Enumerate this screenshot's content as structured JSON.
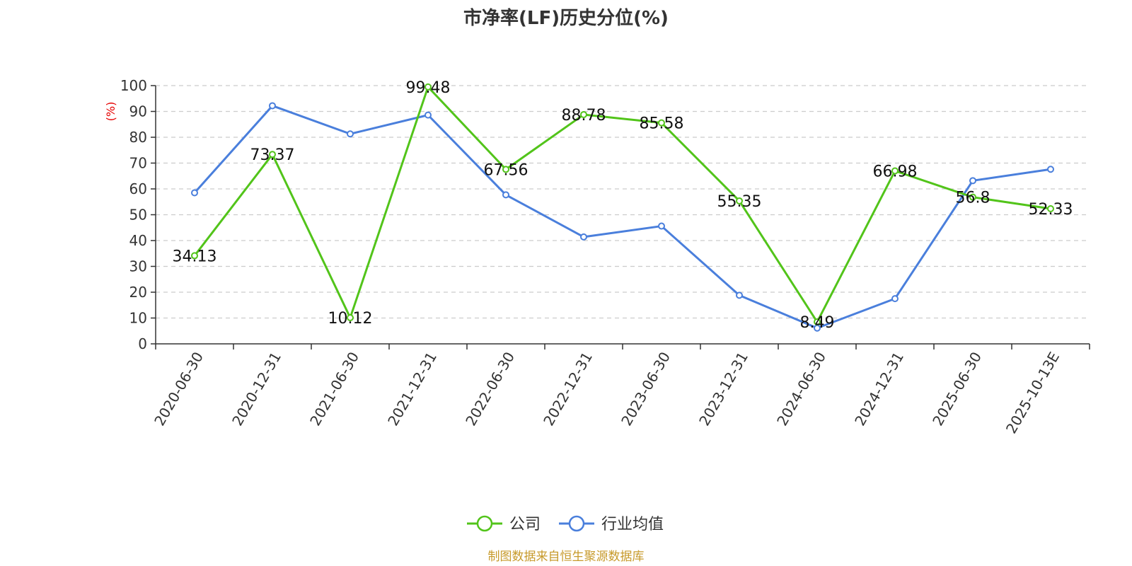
{
  "chart_data": {
    "type": "line",
    "title": "市净率(LF)历史分位(%)",
    "ylabel": "(%)",
    "ylim": [
      0,
      100
    ],
    "yticks": [
      0,
      10,
      20,
      30,
      40,
      50,
      60,
      70,
      80,
      90,
      100
    ],
    "categories": [
      "2020-06-30",
      "2020-12-31",
      "2021-06-30",
      "2021-12-31",
      "2022-06-30",
      "2022-12-31",
      "2023-06-30",
      "2023-12-31",
      "2024-06-30",
      "2024-12-31",
      "2025-06-30",
      "2025-10-13E"
    ],
    "grid": true,
    "legend_position": "bottom",
    "series": [
      {
        "name": "公司",
        "color": "#52c41a",
        "values": [
          34.13,
          73.37,
          10.12,
          99.48,
          67.56,
          88.78,
          85.58,
          55.35,
          8.49,
          66.98,
          56.8,
          52.33
        ],
        "labels": [
          "34.13",
          "73.37",
          "10.12",
          "99.48",
          "67.56",
          "88.78",
          "85.58",
          "55.35",
          "8.49",
          "66.98",
          "56.8",
          "52.33"
        ],
        "show_labels": true
      },
      {
        "name": "行业均值",
        "color": "#4a7fdc",
        "values": [
          58.5,
          92.2,
          81.3,
          88.6,
          57.7,
          41.4,
          45.6,
          18.8,
          6.1,
          17.5,
          63.2,
          67.6
        ],
        "show_labels": false
      }
    ],
    "source": "制图数据来自恒生聚源数据库",
    "source_color": "#c79a2b",
    "ylabel_color": "#e60000"
  }
}
